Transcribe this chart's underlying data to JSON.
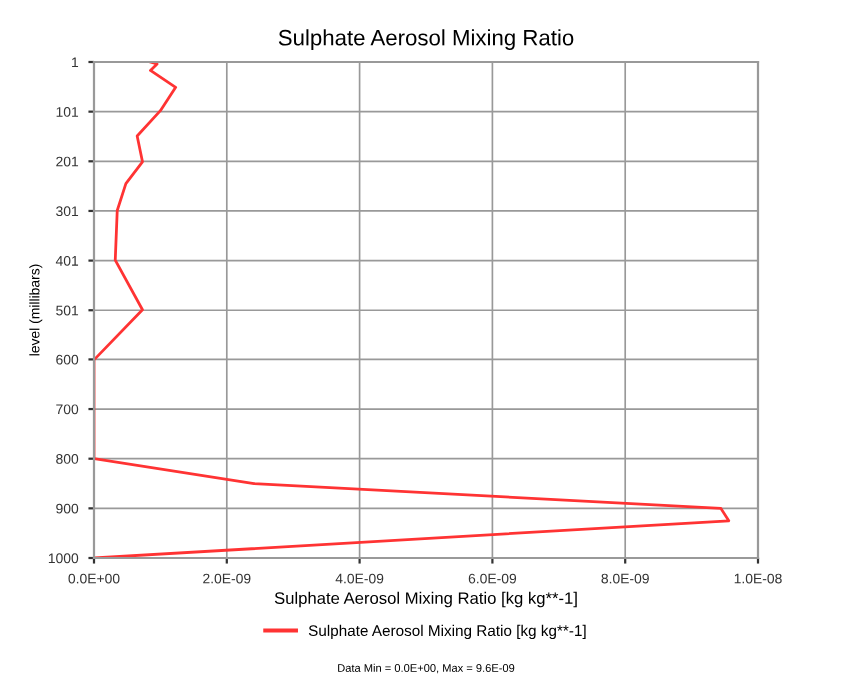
{
  "chart_data": {
    "type": "line",
    "title": "Sulphate Aerosol Mixing Ratio",
    "xlabel": "Sulphate Aerosol Mixing Ratio [kg kg**-1]",
    "ylabel": "level (millibars)",
    "series": [
      {
        "name": "Sulphate Aerosol Mixing Ratio [kg kg**-1]",
        "color": "#ff3333",
        "values": [
          8.5e-10,
          9.5e-10,
          8.5e-10,
          1.23e-09,
          1e-09,
          6.5e-10,
          7.3e-10,
          4.8e-10,
          3.5e-10,
          3.2e-10,
          7.3e-10,
          0,
          0,
          2.41e-09,
          9.44e-09,
          9.56e-09,
          0
        ],
        "x": [
          1,
          5,
          18,
          52,
          99,
          150,
          202,
          246,
          300,
          400,
          500,
          601,
          800,
          850,
          900,
          925,
          1000
        ]
      }
    ],
    "orientation": "horizontal",
    "xlim": [
      0,
      1e-08
    ],
    "ylim": [
      1000,
      1
    ],
    "xticks": [
      {
        "value": 0,
        "label": "0.0E+00"
      },
      {
        "value": 2e-09,
        "label": "2.0E-09"
      },
      {
        "value": 4e-09,
        "label": "4.0E-09"
      },
      {
        "value": 6e-09,
        "label": "6.0E-09"
      },
      {
        "value": 8e-09,
        "label": "8.0E-09"
      },
      {
        "value": 1e-08,
        "label": "1.0E-08"
      }
    ],
    "yticks": [
      1,
      101,
      201,
      301,
      401,
      501,
      600,
      700,
      800,
      900,
      1000
    ],
    "grid": true,
    "legend": "bottom",
    "marker": "none",
    "line_style": "solid",
    "annotations": [
      "Data Min = 0.0E+00, Max = 9.6E-09"
    ]
  }
}
